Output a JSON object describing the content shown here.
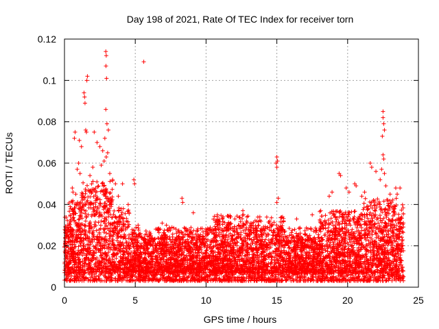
{
  "chart_data": {
    "type": "scatter",
    "title": "Day 198 of 2021, Rate Of TEC Index for receiver torn",
    "xlabel": "GPS time / hours",
    "ylabel": "ROTI / TECUs",
    "xlim": [
      0,
      25
    ],
    "ylim": [
      0,
      0.12
    ],
    "xticks": [
      0,
      5,
      10,
      15,
      20,
      25
    ],
    "xtick_labels": [
      "0",
      "5",
      "10",
      "15",
      "20",
      "25"
    ],
    "yticks": [
      0,
      0.02,
      0.04,
      0.06,
      0.08,
      0.1,
      0.12
    ],
    "ytick_labels": [
      "0",
      "0.02",
      "0.04",
      "0.06",
      "0.08",
      "0.1",
      "0.12"
    ],
    "grid": true,
    "marker": "+",
    "color": "#ff0000",
    "series": [
      {
        "name": "ROTI",
        "points": [
          [
            2.92,
            0.114
          ],
          [
            2.95,
            0.112
          ],
          [
            2.93,
            0.107
          ],
          [
            2.97,
            0.101
          ],
          [
            5.6,
            0.109
          ],
          [
            1.62,
            0.102
          ],
          [
            1.58,
            0.1
          ],
          [
            1.38,
            0.094
          ],
          [
            1.42,
            0.092
          ],
          [
            1.45,
            0.089
          ],
          [
            2.92,
            0.086
          ],
          [
            3.0,
            0.079
          ],
          [
            3.1,
            0.076
          ],
          [
            2.85,
            0.072
          ],
          [
            1.5,
            0.076
          ],
          [
            1.55,
            0.075
          ],
          [
            0.75,
            0.075
          ],
          [
            0.7,
            0.072
          ],
          [
            1.05,
            0.071
          ],
          [
            2.1,
            0.075
          ],
          [
            2.3,
            0.07
          ],
          [
            2.5,
            0.068
          ],
          [
            2.7,
            0.066
          ],
          [
            3.05,
            0.065
          ],
          [
            1.2,
            0.068
          ],
          [
            2.95,
            0.063
          ],
          [
            2.8,
            0.061
          ],
          [
            2.6,
            0.059
          ],
          [
            1.0,
            0.06
          ],
          [
            0.9,
            0.057
          ],
          [
            1.1,
            0.055
          ],
          [
            2.0,
            0.058
          ],
          [
            1.8,
            0.054
          ],
          [
            3.2,
            0.055
          ],
          [
            3.4,
            0.052
          ],
          [
            3.6,
            0.05
          ],
          [
            4.1,
            0.05
          ],
          [
            4.9,
            0.052
          ],
          [
            4.95,
            0.05
          ],
          [
            0.55,
            0.048
          ],
          [
            0.6,
            0.046
          ],
          [
            0.4,
            0.039
          ],
          [
            0.45,
            0.038
          ],
          [
            0.8,
            0.045
          ],
          [
            1.3,
            0.044
          ],
          [
            1.7,
            0.047
          ],
          [
            2.2,
            0.046
          ],
          [
            2.4,
            0.049
          ],
          [
            3.8,
            0.044
          ],
          [
            4.5,
            0.04
          ],
          [
            15.0,
            0.063
          ],
          [
            15.05,
            0.061
          ],
          [
            14.95,
            0.06
          ],
          [
            15.0,
            0.058
          ],
          [
            15.1,
            0.043
          ],
          [
            15.0,
            0.041
          ],
          [
            12.6,
            0.037
          ],
          [
            12.65,
            0.035
          ],
          [
            8.3,
            0.043
          ],
          [
            8.35,
            0.041
          ],
          [
            19.4,
            0.055
          ],
          [
            19.5,
            0.054
          ],
          [
            20.5,
            0.05
          ],
          [
            20.6,
            0.049
          ],
          [
            21.6,
            0.06
          ],
          [
            21.7,
            0.058
          ],
          [
            22.0,
            0.056
          ],
          [
            22.5,
            0.085
          ],
          [
            22.5,
            0.082
          ],
          [
            22.55,
            0.079
          ],
          [
            22.6,
            0.076
          ],
          [
            22.45,
            0.073
          ],
          [
            22.5,
            0.064
          ],
          [
            22.55,
            0.062
          ],
          [
            22.4,
            0.057
          ],
          [
            22.6,
            0.055
          ],
          [
            22.3,
            0.052
          ],
          [
            22.7,
            0.049
          ],
          [
            23.4,
            0.048
          ],
          [
            23.7,
            0.048
          ],
          [
            23.5,
            0.045
          ],
          [
            19.9,
            0.048
          ],
          [
            20.1,
            0.046
          ],
          [
            18.9,
            0.046
          ],
          [
            18.7,
            0.044
          ],
          [
            21.2,
            0.046
          ],
          [
            21.0,
            0.044
          ],
          [
            23.0,
            0.045
          ],
          [
            13.8,
            0.034
          ],
          [
            17.5,
            0.035
          ],
          [
            9.1,
            0.036
          ],
          [
            10.8,
            0.035
          ],
          [
            11.2,
            0.034
          ],
          [
            6.9,
            0.031
          ],
          [
            7.2,
            0.03
          ],
          [
            16.4,
            0.033
          ],
          [
            18.1,
            0.037
          ],
          [
            14.5,
            0.032
          ],
          [
            5.2,
            0.03
          ],
          [
            0.2,
            0.03
          ],
          [
            19.6,
            0.005
          ],
          [
            19.5,
            0.006
          ],
          [
            19.7,
            0.004
          ],
          [
            19.4,
            0.007
          ]
        ]
      }
    ]
  }
}
